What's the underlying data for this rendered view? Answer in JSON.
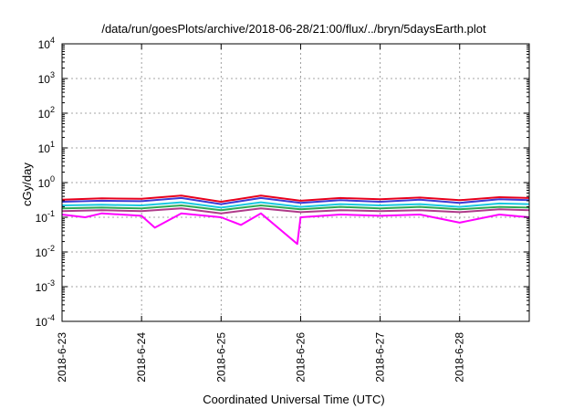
{
  "chart_data": {
    "type": "line",
    "title": "/data/run/goesPlots/archive/2018-06-28/21:00/flux/../bryn/5daysEarth.plot",
    "xlabel": "Coordinated Universal Time (UTC)",
    "ylabel": "cGy/day",
    "yscale": "log",
    "ylim": [
      0.0001,
      10000
    ],
    "y_ticks": [
      {
        "base": "10",
        "exp": "-4",
        "value": 0.0001
      },
      {
        "base": "10",
        "exp": "-3",
        "value": 0.001
      },
      {
        "base": "10",
        "exp": "-2",
        "value": 0.01
      },
      {
        "base": "10",
        "exp": "-1",
        "value": 0.1
      },
      {
        "base": "10",
        "exp": "0",
        "value": 1
      },
      {
        "base": "10",
        "exp": "1",
        "value": 10
      },
      {
        "base": "10",
        "exp": "2",
        "value": 100
      },
      {
        "base": "10",
        "exp": "3",
        "value": 1000
      },
      {
        "base": "10",
        "exp": "4",
        "value": 10000
      }
    ],
    "xlim": [
      "2018-06-23",
      "2018-06-28 21:00"
    ],
    "x_ticks": [
      "2018-6-23",
      "2018-6-24",
      "2018-6-25",
      "2018-6-26",
      "2018-6-27",
      "2018-6-28"
    ],
    "grid": true,
    "legend": "none",
    "series": [
      {
        "color": "#e8001c",
        "x": [
          "2018-06-23",
          "2018-06-23 12:00",
          "2018-06-24",
          "2018-06-24 12:00",
          "2018-06-25",
          "2018-06-25 12:00",
          "2018-06-26",
          "2018-06-26 12:00",
          "2018-06-27",
          "2018-06-27 12:00",
          "2018-06-28",
          "2018-06-28 12:00",
          "2018-06-28 21:00"
        ],
        "values": [
          0.32,
          0.35,
          0.34,
          0.42,
          0.28,
          0.42,
          0.3,
          0.36,
          0.33,
          0.37,
          0.31,
          0.38,
          0.36
        ]
      },
      {
        "color": "#3b3bd6",
        "x": [
          "2018-06-23",
          "2018-06-23 12:00",
          "2018-06-24",
          "2018-06-24 12:00",
          "2018-06-25",
          "2018-06-25 12:00",
          "2018-06-26",
          "2018-06-26 12:00",
          "2018-06-27",
          "2018-06-27 12:00",
          "2018-06-28",
          "2018-06-28 12:00",
          "2018-06-28 21:00"
        ],
        "values": [
          0.28,
          0.3,
          0.29,
          0.36,
          0.24,
          0.36,
          0.26,
          0.31,
          0.28,
          0.32,
          0.26,
          0.33,
          0.31
        ]
      },
      {
        "color": "#19c8e0",
        "x": [
          "2018-06-23",
          "2018-06-23 12:00",
          "2018-06-24",
          "2018-06-24 12:00",
          "2018-06-25",
          "2018-06-25 12:00",
          "2018-06-26",
          "2018-06-26 12:00",
          "2018-06-27",
          "2018-06-27 12:00",
          "2018-06-28",
          "2018-06-28 12:00",
          "2018-06-28 21:00"
        ],
        "values": [
          0.22,
          0.23,
          0.22,
          0.27,
          0.19,
          0.27,
          0.2,
          0.24,
          0.22,
          0.24,
          0.2,
          0.25,
          0.24
        ]
      },
      {
        "color": "#2eaa55",
        "x": [
          "2018-06-23",
          "2018-06-23 12:00",
          "2018-06-24",
          "2018-06-24 12:00",
          "2018-06-25",
          "2018-06-25 12:00",
          "2018-06-26",
          "2018-06-26 12:00",
          "2018-06-27",
          "2018-06-27 12:00",
          "2018-06-28",
          "2018-06-28 12:00",
          "2018-06-28 21:00"
        ],
        "values": [
          0.18,
          0.19,
          0.18,
          0.22,
          0.16,
          0.22,
          0.17,
          0.2,
          0.18,
          0.2,
          0.17,
          0.2,
          0.19
        ]
      },
      {
        "color": "#b03a8a",
        "x": [
          "2018-06-23",
          "2018-06-23 12:00",
          "2018-06-24",
          "2018-06-24 12:00",
          "2018-06-25",
          "2018-06-25 12:00",
          "2018-06-26",
          "2018-06-26 12:00",
          "2018-06-27",
          "2018-06-27 12:00",
          "2018-06-28",
          "2018-06-28 12:00",
          "2018-06-28 21:00"
        ],
        "values": [
          0.15,
          0.16,
          0.15,
          0.18,
          0.13,
          0.18,
          0.14,
          0.16,
          0.15,
          0.16,
          0.14,
          0.17,
          0.16
        ]
      },
      {
        "color": "#ff00ff",
        "x": [
          "2018-06-23",
          "2018-06-23 07:00",
          "2018-06-23 12:00",
          "2018-06-24",
          "2018-06-24 04:00",
          "2018-06-24 12:00",
          "2018-06-25",
          "2018-06-25 06:00",
          "2018-06-25 12:00",
          "2018-06-25 23:00",
          "2018-06-26",
          "2018-06-26 12:00",
          "2018-06-27",
          "2018-06-27 12:00",
          "2018-06-28",
          "2018-06-28 12:00",
          "2018-06-28 21:00"
        ],
        "values": [
          0.12,
          0.1,
          0.13,
          0.11,
          0.05,
          0.13,
          0.1,
          0.06,
          0.13,
          0.017,
          0.1,
          0.12,
          0.11,
          0.12,
          0.07,
          0.12,
          0.1
        ]
      }
    ]
  }
}
